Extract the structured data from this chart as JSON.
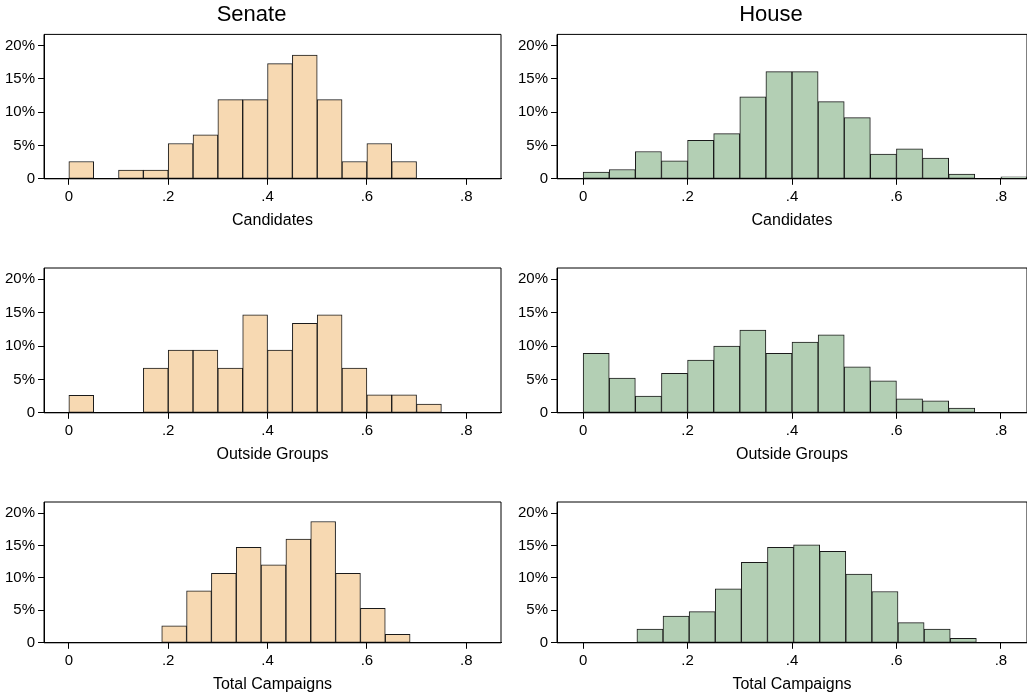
{
  "chart_data": [
    {
      "type": "histogram",
      "title": "Senate",
      "xlabel": "Candidates",
      "color": "#f7d9b2",
      "grid": false,
      "legend": false,
      "xlim": [
        -0.05,
        0.87
      ],
      "ylim": [
        0,
        21.7
      ],
      "xticks": [
        {
          "value": 0,
          "label": "0"
        },
        {
          "value": 0.2,
          "label": ".2"
        },
        {
          "value": 0.4,
          "label": ".4"
        },
        {
          "value": 0.6,
          "label": ".6"
        },
        {
          "value": 0.8,
          "label": ".8"
        }
      ],
      "yticks": [
        {
          "value": 0,
          "label": "0"
        },
        {
          "value": 5,
          "label": "5%"
        },
        {
          "value": 10,
          "label": "10%"
        },
        {
          "value": 15,
          "label": "15%"
        },
        {
          "value": 20,
          "label": "20%"
        }
      ],
      "bins": [
        0,
        0.05,
        0.1,
        0.15,
        0.2,
        0.25,
        0.3,
        0.35,
        0.4,
        0.45,
        0.5,
        0.55,
        0.6,
        0.65,
        0.7
      ],
      "values": [
        2.6,
        0,
        1.3,
        1.3,
        5.3,
        6.6,
        11.9,
        11.9,
        17.3,
        18.6,
        11.9,
        2.6,
        5.3,
        2.6
      ]
    },
    {
      "type": "histogram",
      "title": "House",
      "xlabel": "Candidates",
      "color": "#b3cfb4",
      "grid": false,
      "legend": false,
      "xlim": [
        -0.05,
        0.85
      ],
      "ylim": [
        0,
        21.7
      ],
      "xticks": [
        {
          "value": 0,
          "label": "0"
        },
        {
          "value": 0.2,
          "label": ".2"
        },
        {
          "value": 0.4,
          "label": ".4"
        },
        {
          "value": 0.6,
          "label": ".6"
        },
        {
          "value": 0.8,
          "label": ".8"
        }
      ],
      "yticks": [
        {
          "value": 0,
          "label": "0"
        },
        {
          "value": 5,
          "label": "5%"
        },
        {
          "value": 10,
          "label": "10%"
        },
        {
          "value": 15,
          "label": "15%"
        },
        {
          "value": 20,
          "label": "20%"
        }
      ],
      "bins": [
        0,
        0.05,
        0.1,
        0.15,
        0.2,
        0.25,
        0.3,
        0.35,
        0.4,
        0.45,
        0.5,
        0.55,
        0.6,
        0.65,
        0.7,
        0.75,
        0.8,
        0.85
      ],
      "values": [
        1.0,
        1.4,
        4.1,
        2.7,
        5.8,
        6.8,
        12.3,
        16.1,
        16.1,
        11.6,
        9.2,
        3.7,
        4.5,
        3.1,
        0.7,
        0,
        0.3
      ]
    },
    {
      "type": "histogram",
      "xlabel": "Outside Groups",
      "color": "#f7d9b2",
      "grid": false,
      "legend": false,
      "xlim": [
        -0.05,
        0.87
      ],
      "ylim": [
        0,
        21.7
      ],
      "xticks": [
        {
          "value": 0,
          "label": "0"
        },
        {
          "value": 0.2,
          "label": ".2"
        },
        {
          "value": 0.4,
          "label": ".4"
        },
        {
          "value": 0.6,
          "label": ".6"
        },
        {
          "value": 0.8,
          "label": ".8"
        }
      ],
      "yticks": [
        {
          "value": 0,
          "label": "0"
        },
        {
          "value": 5,
          "label": "5%"
        },
        {
          "value": 10,
          "label": "10%"
        },
        {
          "value": 15,
          "label": "15%"
        },
        {
          "value": 20,
          "label": "20%"
        }
      ],
      "bins": [
        0,
        0.05,
        0.1,
        0.15,
        0.2,
        0.25,
        0.3,
        0.35,
        0.4,
        0.45,
        0.5,
        0.55,
        0.6,
        0.65,
        0.7,
        0.75
      ],
      "values": [
        2.6,
        0,
        0,
        6.7,
        9.4,
        9.4,
        6.7,
        14.7,
        9.4,
        13.4,
        14.7,
        6.7,
        2.7,
        2.7,
        1.3
      ]
    },
    {
      "type": "histogram",
      "xlabel": "Outside Groups",
      "color": "#b3cfb4",
      "grid": false,
      "legend": false,
      "xlim": [
        -0.05,
        0.85
      ],
      "ylim": [
        0,
        21.7
      ],
      "xticks": [
        {
          "value": 0,
          "label": "0"
        },
        {
          "value": 0.2,
          "label": ".2"
        },
        {
          "value": 0.4,
          "label": ".4"
        },
        {
          "value": 0.6,
          "label": ".6"
        },
        {
          "value": 0.8,
          "label": ".8"
        }
      ],
      "yticks": [
        {
          "value": 0,
          "label": "0"
        },
        {
          "value": 5,
          "label": "5%"
        },
        {
          "value": 10,
          "label": "10%"
        },
        {
          "value": 15,
          "label": "15%"
        },
        {
          "value": 20,
          "label": "20%"
        }
      ],
      "bins": [
        0,
        0.05,
        0.1,
        0.15,
        0.2,
        0.25,
        0.3,
        0.35,
        0.4,
        0.45,
        0.5,
        0.55,
        0.6,
        0.65,
        0.7,
        0.75
      ],
      "values": [
        8.9,
        5.2,
        2.5,
        5.9,
        7.9,
        10.0,
        12.4,
        8.9,
        10.6,
        11.7,
        6.9,
        4.8,
        2.1,
        1.8,
        0.7
      ]
    },
    {
      "type": "histogram",
      "xlabel": "Total Campaigns",
      "color": "#f7d9b2",
      "grid": false,
      "legend": false,
      "xlim": [
        -0.05,
        0.87
      ],
      "ylim": [
        0,
        21.7
      ],
      "xticks": [
        {
          "value": 0,
          "label": "0"
        },
        {
          "value": 0.2,
          "label": ".2"
        },
        {
          "value": 0.4,
          "label": ".4"
        },
        {
          "value": 0.6,
          "label": ".6"
        },
        {
          "value": 0.8,
          "label": ".8"
        }
      ],
      "yticks": [
        {
          "value": 0,
          "label": "0"
        },
        {
          "value": 5,
          "label": "5%"
        },
        {
          "value": 10,
          "label": "10%"
        },
        {
          "value": 15,
          "label": "15%"
        },
        {
          "value": 20,
          "label": "20%"
        }
      ],
      "bins": [
        0.187,
        0.237,
        0.287,
        0.337,
        0.387,
        0.437,
        0.487,
        0.537,
        0.587,
        0.637,
        0.687
      ],
      "values": [
        2.6,
        8.0,
        10.7,
        14.7,
        12.0,
        16.0,
        18.7,
        10.7,
        5.3,
        1.3
      ]
    },
    {
      "type": "histogram",
      "xlabel": "Total Campaigns",
      "color": "#b3cfb4",
      "grid": false,
      "legend": false,
      "xlim": [
        -0.05,
        0.85
      ],
      "ylim": [
        0,
        21.7
      ],
      "xticks": [
        {
          "value": 0,
          "label": "0"
        },
        {
          "value": 0.2,
          "label": ".2"
        },
        {
          "value": 0.4,
          "label": ".4"
        },
        {
          "value": 0.6,
          "label": ".6"
        },
        {
          "value": 0.8,
          "label": ".8"
        }
      ],
      "yticks": [
        {
          "value": 0,
          "label": "0"
        },
        {
          "value": 5,
          "label": "5%"
        },
        {
          "value": 10,
          "label": "10%"
        },
        {
          "value": 15,
          "label": "15%"
        },
        {
          "value": 20,
          "label": "20%"
        }
      ],
      "bins": [
        0.103,
        0.153,
        0.203,
        0.253,
        0.303,
        0.353,
        0.403,
        0.453,
        0.503,
        0.553,
        0.603,
        0.653,
        0.703,
        0.753
      ],
      "values": [
        2.1,
        4.1,
        4.8,
        8.3,
        12.4,
        14.7,
        15.1,
        14.1,
        10.6,
        7.9,
        3.1,
        2.1,
        0.7
      ]
    }
  ]
}
